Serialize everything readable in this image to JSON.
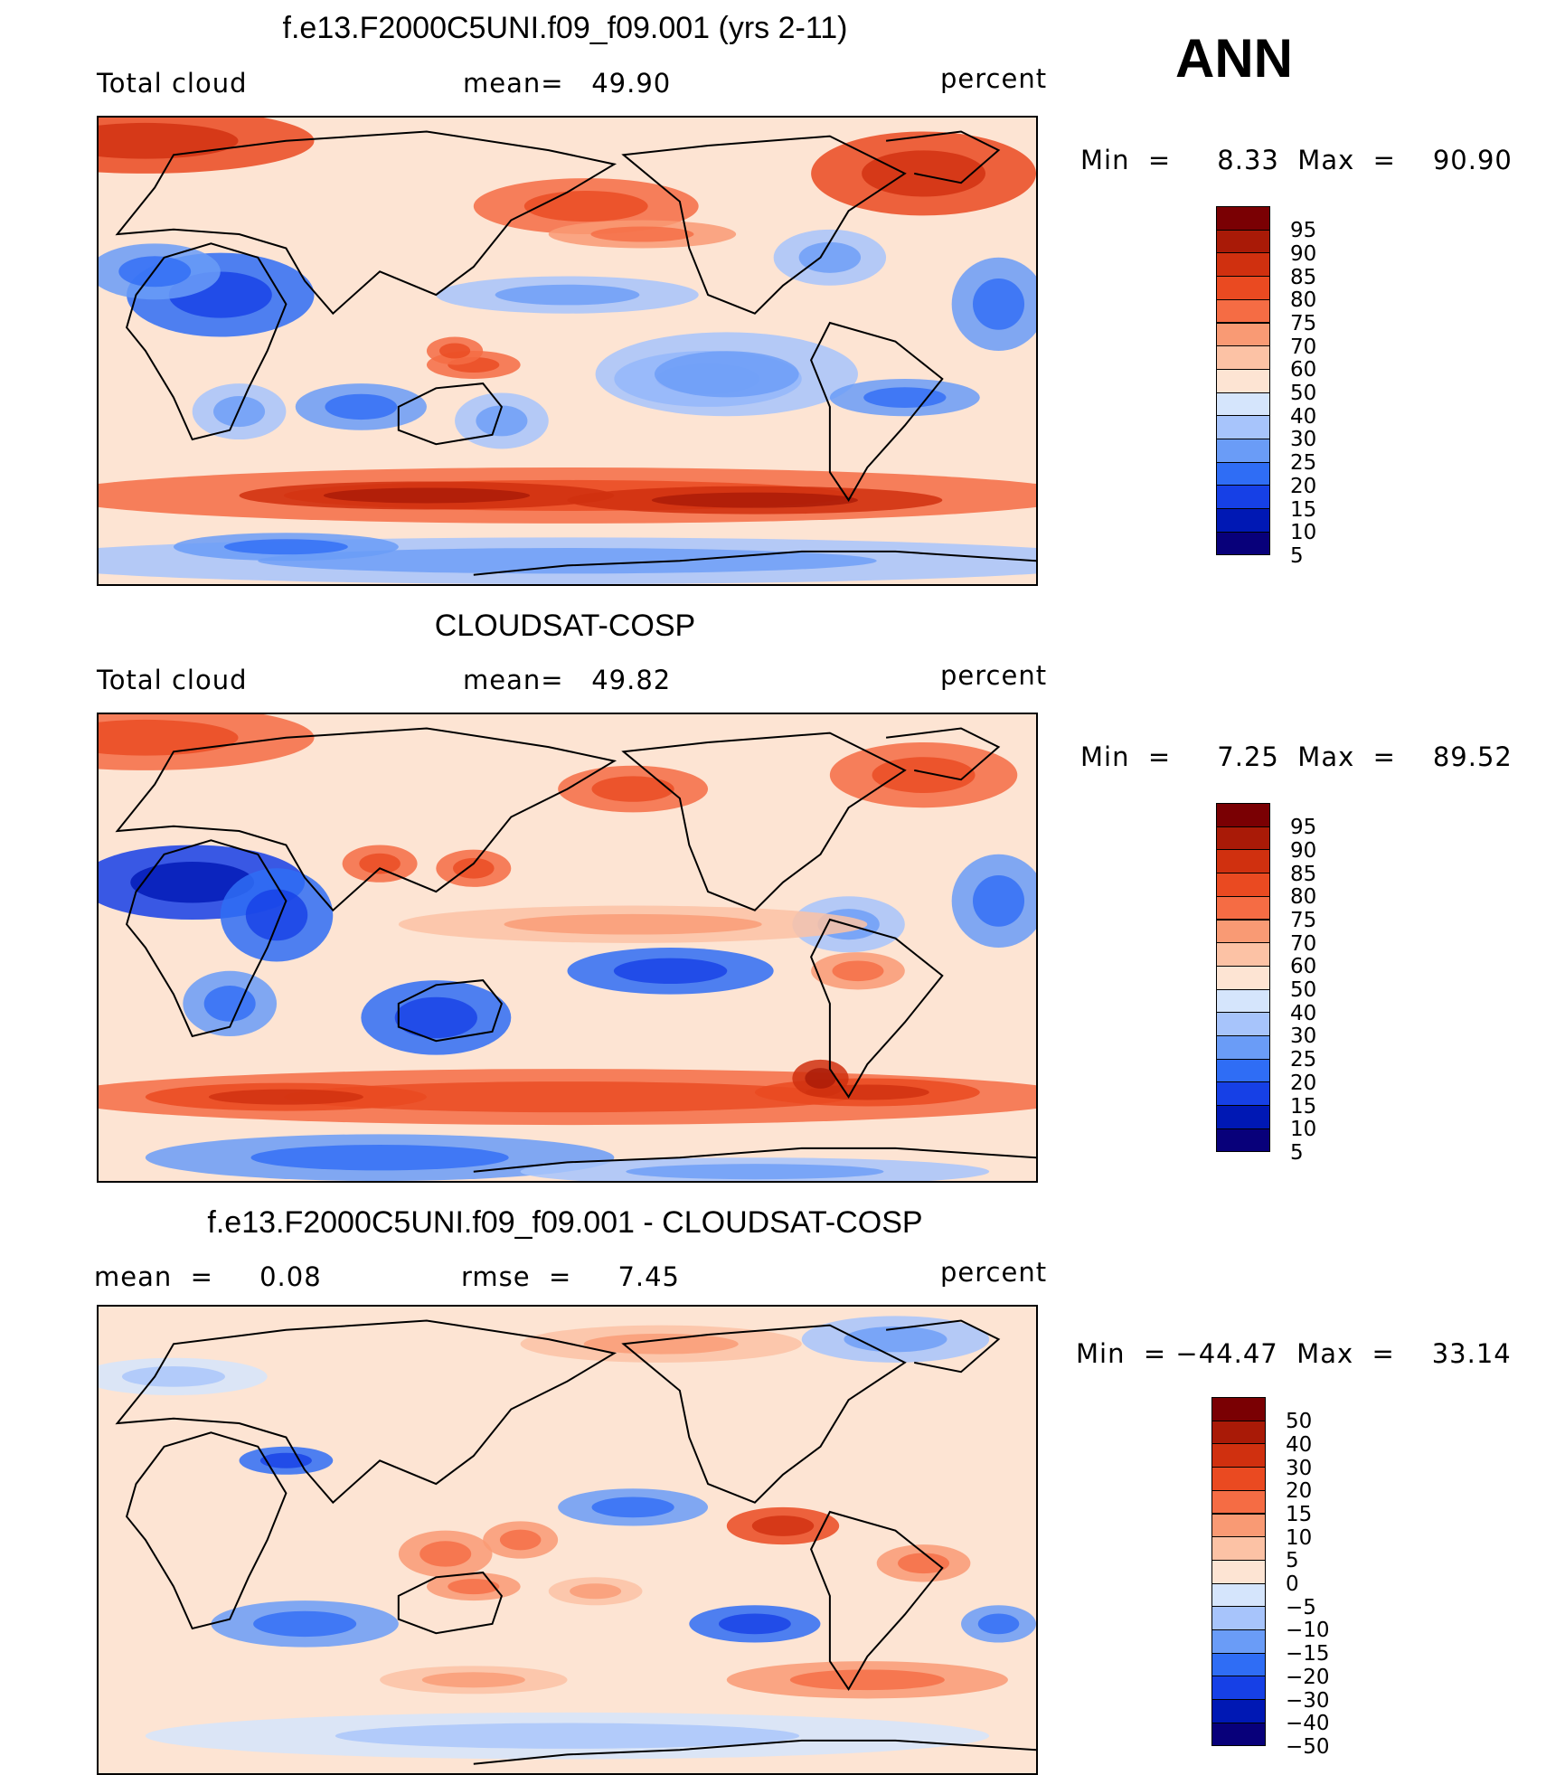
{
  "season_label": "ANN",
  "colors": {
    "abs_scale": [
      "#08007a",
      "#0018b4",
      "#1640e6",
      "#2f6df5",
      "#6a9cf7",
      "#a7c4fb",
      "#d5e5fc",
      "#fde4d3",
      "#fcc2a5",
      "#f99a74",
      "#f56c44",
      "#ea4a21",
      "#d0300f",
      "#a91a07",
      "#7a0003"
    ],
    "diff_scale": [
      "#08007a",
      "#0018b4",
      "#1640e6",
      "#2f6df5",
      "#6a9cf7",
      "#a7c4fb",
      "#d5e5fc",
      "#fde4d3",
      "#fcc2a5",
      "#f99a74",
      "#f56c44",
      "#ea4a21",
      "#d0300f",
      "#a91a07",
      "#7a0003"
    ]
  },
  "panels": [
    {
      "title": "f.e13.F2000C5UNI.f09_f09.001 (yrs 2-11)",
      "left_label": "Total cloud",
      "mid_label": "mean=   49.90",
      "right_label": "percent",
      "min_max": "Min  =     8.33  Max  =    90.90",
      "colorbar_labels": [
        "95",
        "90",
        "85",
        "80",
        "75",
        "70",
        "60",
        "50",
        "40",
        "30",
        "25",
        "20",
        "15",
        "10",
        "5"
      ],
      "base_fill": "#fde4d3"
    },
    {
      "title": "CLOUDSAT-COSP",
      "left_label": "Total cloud",
      "mid_label": "mean=   49.82",
      "right_label": "percent",
      "min_max": "Min  =     7.25  Max  =    89.52",
      "colorbar_labels": [
        "95",
        "90",
        "85",
        "80",
        "75",
        "70",
        "60",
        "50",
        "40",
        "30",
        "25",
        "20",
        "15",
        "10",
        "5"
      ],
      "base_fill": "#fde4d3"
    },
    {
      "title": "f.e13.F2000C5UNI.f09_f09.001 - CLOUDSAT-COSP",
      "left_label": "mean  =     0.08",
      "mid_label": "rmse  =     7.45",
      "right_label": "percent",
      "min_max": "Min  = −44.47  Max  =    33.14",
      "colorbar_labels": [
        "50",
        "40",
        "30",
        "20",
        "15",
        "10",
        "5",
        "0",
        "−5",
        "−10",
        "−15",
        "−20",
        "−30",
        "−40",
        "−50"
      ],
      "base_fill": "#fde4d3"
    }
  ]
}
